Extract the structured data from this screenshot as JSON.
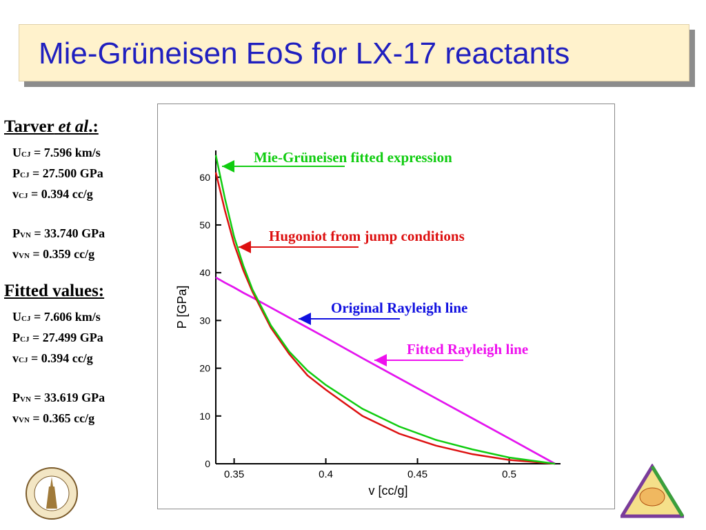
{
  "title": "Mie-Grüneisen EoS for LX-17 reactants",
  "tarver": {
    "heading": [
      "Tarver",
      "et al",
      ".:"
    ],
    "lines": [
      {
        "sym": "U",
        "sub": "CJ",
        "rest": "= 7.596 km/s"
      },
      {
        "sym": "P",
        "sub": "CJ",
        "rest": "= 27.500 GPa"
      },
      {
        "sym": "v",
        "sub": "CJ",
        "rest": "= 0.394 cc/g"
      },
      {
        "sym": "P",
        "sub": "VN",
        "rest": "= 33.740 GPa"
      },
      {
        "sym": "v",
        "sub": "VN",
        "rest": "= 0.359 cc/g"
      }
    ]
  },
  "fitted": {
    "heading": "Fitted values:",
    "lines": [
      {
        "sym": "U",
        "sub": "CJ",
        "rest": "= 7.606 km/s"
      },
      {
        "sym": "P",
        "sub": "CJ",
        "rest": "= 27.499 GPa"
      },
      {
        "sym": "v",
        "sub": "CJ",
        "rest": "= 0.394 cc/g"
      },
      {
        "sym": "P",
        "sub": "VN",
        "rest": "= 33.619 GPa"
      },
      {
        "sym": "v",
        "sub": "VN",
        "rest": "= 0.365 cc/g"
      }
    ]
  },
  "chart_data": {
    "type": "line",
    "x_label": "v [cc/g]",
    "y_label": "P [GPa]",
    "xlim": [
      0.34,
      0.528
    ],
    "ylim": [
      0,
      65.6
    ],
    "xticks": [
      0.35,
      0.4,
      0.45,
      0.5
    ],
    "yticks": [
      0,
      10,
      20,
      30,
      40,
      50,
      60
    ],
    "x": [
      0.34,
      0.345,
      0.35,
      0.355,
      0.36,
      0.37,
      0.38,
      0.39,
      0.4,
      0.42,
      0.44,
      0.46,
      0.48,
      0.5,
      0.525
    ],
    "series": [
      {
        "name": "Original Rayleigh line",
        "color": "#1010e0",
        "values": [
          39,
          37.9,
          36.9,
          35.8,
          34.8,
          32.7,
          30.6,
          28.5,
          26.4,
          22.1,
          17.9,
          13.7,
          9.5,
          5.3,
          0
        ]
      },
      {
        "name": "Fitted Rayleigh line",
        "color": "#ee10ee",
        "values": [
          39,
          37.9,
          36.9,
          35.8,
          34.8,
          32.7,
          30.6,
          28.5,
          26.4,
          22.1,
          17.9,
          13.7,
          9.5,
          5.3,
          0
        ]
      },
      {
        "name": "Hugoniot from jump conditions",
        "color": "#dd1010",
        "values": [
          61,
          53,
          46,
          40.5,
          36,
          28.5,
          23,
          18.5,
          15.5,
          10,
          6.3,
          3.8,
          2,
          0.8,
          0
        ]
      },
      {
        "name": "Mie-Grüneisen fitted expression",
        "color": "#10cc10",
        "values": [
          64.6,
          55.5,
          47.5,
          41.5,
          36.5,
          29,
          23.5,
          19.5,
          16.5,
          11.5,
          7.8,
          5,
          3,
          1.3,
          0
        ]
      }
    ]
  }
}
